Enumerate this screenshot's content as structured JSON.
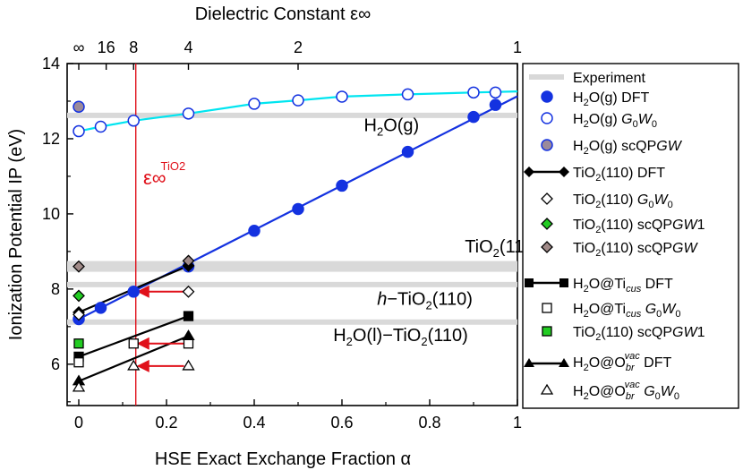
{
  "chart_data": {
    "type": "scatter",
    "title": "",
    "xlabel": "HSE Exact Exchange Fraction α",
    "ylabel": "Ionization Potential IP (eV)",
    "top_axis_label": "Dielectric Constant ε∞",
    "xlim": [
      -0.03,
      1.0
    ],
    "ylim": [
      4.9,
      14.0
    ],
    "x_ticks": [
      {
        "v": 0,
        "label": "0"
      },
      {
        "v": 0.2,
        "label": "0.2"
      },
      {
        "v": 0.4,
        "label": "0.4"
      },
      {
        "v": 0.6,
        "label": "0.6"
      },
      {
        "v": 0.8,
        "label": "0.8"
      },
      {
        "v": 1.0,
        "label": "1"
      }
    ],
    "y_ticks": [
      {
        "v": 6,
        "label": "6"
      },
      {
        "v": 8,
        "label": "8"
      },
      {
        "v": 10,
        "label": "10"
      },
      {
        "v": 12,
        "label": "12"
      },
      {
        "v": 14,
        "label": "14"
      }
    ],
    "top_ticks": [
      {
        "alpha": 0,
        "label": "∞"
      },
      {
        "alpha": 0.0625,
        "label": "16"
      },
      {
        "alpha": 0.125,
        "label": "8"
      },
      {
        "alpha": 0.25,
        "label": "4"
      },
      {
        "alpha": 0.5,
        "label": "2"
      },
      {
        "alpha": 1.0,
        "label": "1"
      }
    ],
    "experiment_bands": [
      {
        "label": "H2O(g)",
        "y": 12.62
      },
      {
        "label": "TiO2(110)",
        "y": 8.6
      },
      {
        "label": "h-TiO2(110)",
        "y": 8.12
      },
      {
        "label": "H2O(l)-TiO2(110)",
        "y": 7.12
      }
    ],
    "vline": {
      "x": 0.13,
      "label": "ε∞",
      "sup": "TiO2"
    },
    "series": [
      {
        "name": "H2O(g) DFT",
        "marker": "circle",
        "style": "filled",
        "color": "#1432e0",
        "points": [
          [
            0,
            7.2
          ],
          [
            0.05,
            7.5
          ],
          [
            0.125,
            7.93
          ],
          [
            0.25,
            8.6
          ],
          [
            0.4,
            9.55
          ],
          [
            0.5,
            10.13
          ],
          [
            0.6,
            10.75
          ],
          [
            0.75,
            11.65
          ],
          [
            0.9,
            12.58
          ],
          [
            0.95,
            12.9
          ]
        ]
      },
      {
        "name": "H2O(g) G0W0",
        "marker": "circle",
        "style": "open",
        "color": "#1432e0",
        "points": [
          [
            0,
            12.2
          ],
          [
            0.05,
            12.32
          ],
          [
            0.125,
            12.48
          ],
          [
            0.25,
            12.67
          ],
          [
            0.4,
            12.93
          ],
          [
            0.5,
            13.02
          ],
          [
            0.6,
            13.12
          ],
          [
            0.75,
            13.18
          ],
          [
            0.9,
            13.23
          ],
          [
            0.95,
            13.23
          ]
        ]
      },
      {
        "name": "H2O(g) scQPGW",
        "marker": "circle",
        "style": "filled",
        "color": "#9b8a9a",
        "points": [
          [
            0,
            12.85
          ]
        ]
      },
      {
        "name": "TiO2(110) DFT",
        "marker": "diamond",
        "style": "filled",
        "color": "#000000",
        "points": [
          [
            0,
            7.38
          ],
          [
            0.25,
            8.62
          ]
        ]
      },
      {
        "name": "TiO2(110) G0W0",
        "marker": "diamond",
        "style": "open",
        "color": "#000000",
        "points": [
          [
            0,
            7.32
          ],
          [
            0.25,
            7.93
          ]
        ]
      },
      {
        "name": "TiO2(110) scQPGW1",
        "marker": "diamond",
        "style": "filled",
        "color": "#22cc22",
        "points": [
          [
            0,
            7.82
          ]
        ]
      },
      {
        "name": "TiO2(110) scQPGW",
        "marker": "diamond",
        "style": "filled",
        "color": "#a08a88",
        "points": [
          [
            0,
            8.6
          ],
          [
            0.25,
            8.75
          ]
        ]
      },
      {
        "name": "H2O@Ticus DFT",
        "marker": "square",
        "style": "filled",
        "color": "#000000",
        "points": [
          [
            0,
            6.2
          ],
          [
            0.25,
            7.28
          ]
        ]
      },
      {
        "name": "H2O@Ticus G0W0",
        "marker": "square",
        "style": "open",
        "color": "#000000",
        "points": [
          [
            0,
            6.05
          ],
          [
            0.125,
            6.55
          ],
          [
            0.25,
            6.55
          ]
        ]
      },
      {
        "name": "TiO2(110) scQPGW1 (sq)",
        "marker": "square",
        "style": "filled",
        "color": "#22cc22",
        "points": [
          [
            0,
            6.55
          ]
        ]
      },
      {
        "name": "H2O@Obr DFT",
        "marker": "triangle",
        "style": "filled",
        "color": "#000000",
        "points": [
          [
            0,
            5.55
          ],
          [
            0.25,
            6.75
          ]
        ]
      },
      {
        "name": "H2O@Obr G0W0",
        "marker": "triangle",
        "style": "open",
        "color": "#000000",
        "points": [
          [
            0,
            5.38
          ],
          [
            0.125,
            5.95
          ],
          [
            0.25,
            5.95
          ]
        ]
      }
    ],
    "fit_lines": [
      {
        "name": "H2O(g) DFT fit",
        "color": "#1432e0",
        "from": [
          0,
          7.2
        ],
        "to": [
          1.0,
          13.13
        ]
      },
      {
        "name": "H2O(g) G0W0 fit",
        "color": "#00e5f0",
        "curve": [
          [
            0,
            12.2
          ],
          [
            0.05,
            12.32
          ],
          [
            0.125,
            12.48
          ],
          [
            0.25,
            12.67
          ],
          [
            0.4,
            12.93
          ],
          [
            0.5,
            13.02
          ],
          [
            0.6,
            13.12
          ],
          [
            0.75,
            13.18
          ],
          [
            0.9,
            13.23
          ],
          [
            1.0,
            13.26
          ]
        ]
      },
      {
        "name": "TiO2(110) DFT fit",
        "color": "#000000",
        "from": [
          0,
          7.38
        ],
        "to": [
          0.25,
          8.62
        ]
      },
      {
        "name": "H2O@Ticus DFT fit",
        "color": "#000000",
        "from": [
          0,
          6.2
        ],
        "to": [
          0.25,
          7.28
        ]
      },
      {
        "name": "H2O@Obr DFT fit",
        "color": "#000000",
        "from": [
          0,
          5.55
        ],
        "to": [
          0.25,
          6.75
        ]
      }
    ],
    "arrows": [
      {
        "from": [
          0.24,
          7.93
        ],
        "to": [
          0.135,
          7.93
        ]
      },
      {
        "from": [
          0.24,
          6.55
        ],
        "to": [
          0.135,
          6.55
        ]
      },
      {
        "from": [
          0.24,
          5.95
        ],
        "to": [
          0.135,
          5.95
        ]
      }
    ],
    "annotations": [
      {
        "id": "ann-h2og",
        "at": [
          0.65,
          12.2
        ]
      },
      {
        "id": "ann-tio2",
        "at": [
          0.88,
          8.97
        ]
      },
      {
        "id": "ann-htio2",
        "at": [
          0.68,
          7.58
        ]
      },
      {
        "id": "ann-h2oltio2",
        "at": [
          0.58,
          6.62
        ]
      }
    ],
    "legend_position": "right"
  }
}
